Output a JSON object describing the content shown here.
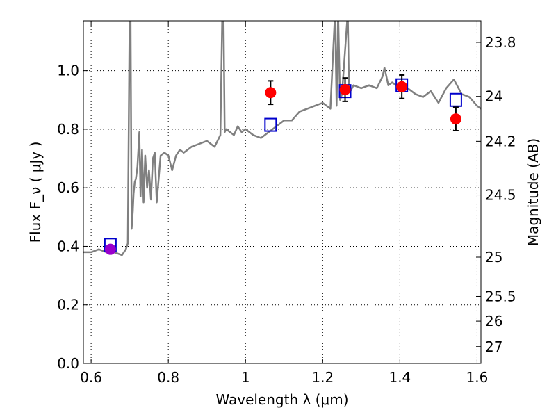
{
  "chart_data": {
    "type": "scatter",
    "title": "",
    "xlabel": "Wavelength  λ (μm)",
    "ylabel": "Flux  F_ν ( μJy )",
    "ylabel_right": "Magnitude (AB)",
    "xlim": [
      0.58,
      1.61
    ],
    "ylim": [
      0.0,
      1.17
    ],
    "grid": true,
    "x_ticks": [
      {
        "value": 0.6,
        "label": "0.6"
      },
      {
        "value": 0.8,
        "label": "0.8"
      },
      {
        "value": 1.0,
        "label": "1"
      },
      {
        "value": 1.2,
        "label": "1.2"
      },
      {
        "value": 1.4,
        "label": "1.4"
      },
      {
        "value": 1.6,
        "label": "1.6"
      }
    ],
    "y_ticks": [
      {
        "value": 0.0,
        "label": "0.0"
      },
      {
        "value": 0.2,
        "label": "0.2"
      },
      {
        "value": 0.4,
        "label": "0.4"
      },
      {
        "value": 0.6,
        "label": "0.6"
      },
      {
        "value": 0.8,
        "label": "0.8"
      },
      {
        "value": 1.0,
        "label": "1.0"
      }
    ],
    "right_ticks": [
      {
        "value": 23.8,
        "label": "23.8"
      },
      {
        "value": 24.0,
        "label": "24"
      },
      {
        "value": 24.2,
        "label": "24.2"
      },
      {
        "value": 24.5,
        "label": "24.5"
      },
      {
        "value": 25.0,
        "label": "25"
      },
      {
        "value": 25.5,
        "label": "25.5"
      },
      {
        "value": 26.0,
        "label": "26"
      },
      {
        "value": 27.0,
        "label": "27"
      }
    ],
    "colors": {
      "spectrum": "#808080",
      "observed": "#ff0000",
      "model": "#0000cc",
      "highlight": "#9900cc",
      "errorbar": "#000000",
      "grid": "#000000"
    },
    "series": [
      {
        "kind": "line",
        "role": "model-spectrum",
        "x": [
          0.58,
          0.6,
          0.62,
          0.64,
          0.66,
          0.68,
          0.69,
          0.695,
          0.7,
          0.702,
          0.705,
          0.708,
          0.71,
          0.713,
          0.716,
          0.72,
          0.725,
          0.728,
          0.732,
          0.736,
          0.74,
          0.745,
          0.75,
          0.755,
          0.76,
          0.765,
          0.77,
          0.78,
          0.79,
          0.8,
          0.81,
          0.82,
          0.83,
          0.84,
          0.86,
          0.88,
          0.9,
          0.92,
          0.935,
          0.94,
          0.943,
          0.946,
          0.95,
          0.96,
          0.97,
          0.98,
          0.99,
          1.0,
          1.02,
          1.04,
          1.06,
          1.08,
          1.1,
          1.12,
          1.14,
          1.16,
          1.18,
          1.2,
          1.22,
          1.232,
          1.236,
          1.24,
          1.245,
          1.25,
          1.265,
          1.268,
          1.272,
          1.28,
          1.3,
          1.32,
          1.34,
          1.355,
          1.36,
          1.37,
          1.38,
          1.4,
          1.42,
          1.44,
          1.46,
          1.48,
          1.5,
          1.52,
          1.54,
          1.56,
          1.58,
          1.6,
          1.61
        ],
        "y": [
          0.38,
          0.38,
          0.39,
          0.38,
          0.38,
          0.37,
          0.39,
          0.41,
          1.2,
          1.2,
          0.46,
          0.52,
          0.58,
          0.62,
          0.63,
          0.67,
          0.79,
          0.57,
          0.73,
          0.55,
          0.71,
          0.6,
          0.66,
          0.56,
          0.7,
          0.72,
          0.55,
          0.71,
          0.72,
          0.71,
          0.66,
          0.71,
          0.73,
          0.72,
          0.74,
          0.75,
          0.76,
          0.74,
          0.78,
          1.2,
          1.2,
          0.79,
          0.8,
          0.79,
          0.78,
          0.81,
          0.79,
          0.8,
          0.78,
          0.77,
          0.79,
          0.81,
          0.83,
          0.83,
          0.86,
          0.87,
          0.88,
          0.89,
          0.87,
          1.2,
          0.88,
          1.2,
          0.9,
          0.92,
          1.2,
          0.94,
          0.93,
          0.95,
          0.94,
          0.95,
          0.94,
          0.98,
          1.01,
          0.95,
          0.96,
          0.94,
          0.94,
          0.92,
          0.91,
          0.93,
          0.89,
          0.94,
          0.97,
          0.92,
          0.91,
          0.88,
          0.87
        ]
      },
      {
        "kind": "points",
        "role": "observed",
        "x": [
          0.65,
          1.065,
          1.258,
          1.405,
          1.545
        ],
        "y": [
          0.39,
          0.925,
          0.935,
          0.945,
          0.835
        ],
        "yerr": [
          0.01,
          0.04,
          0.04,
          0.04,
          0.04
        ]
      },
      {
        "kind": "squares",
        "role": "model-photometry",
        "x": [
          0.65,
          1.065,
          1.258,
          1.405,
          1.545
        ],
        "y": [
          0.405,
          0.815,
          0.93,
          0.95,
          0.9
        ]
      }
    ]
  }
}
